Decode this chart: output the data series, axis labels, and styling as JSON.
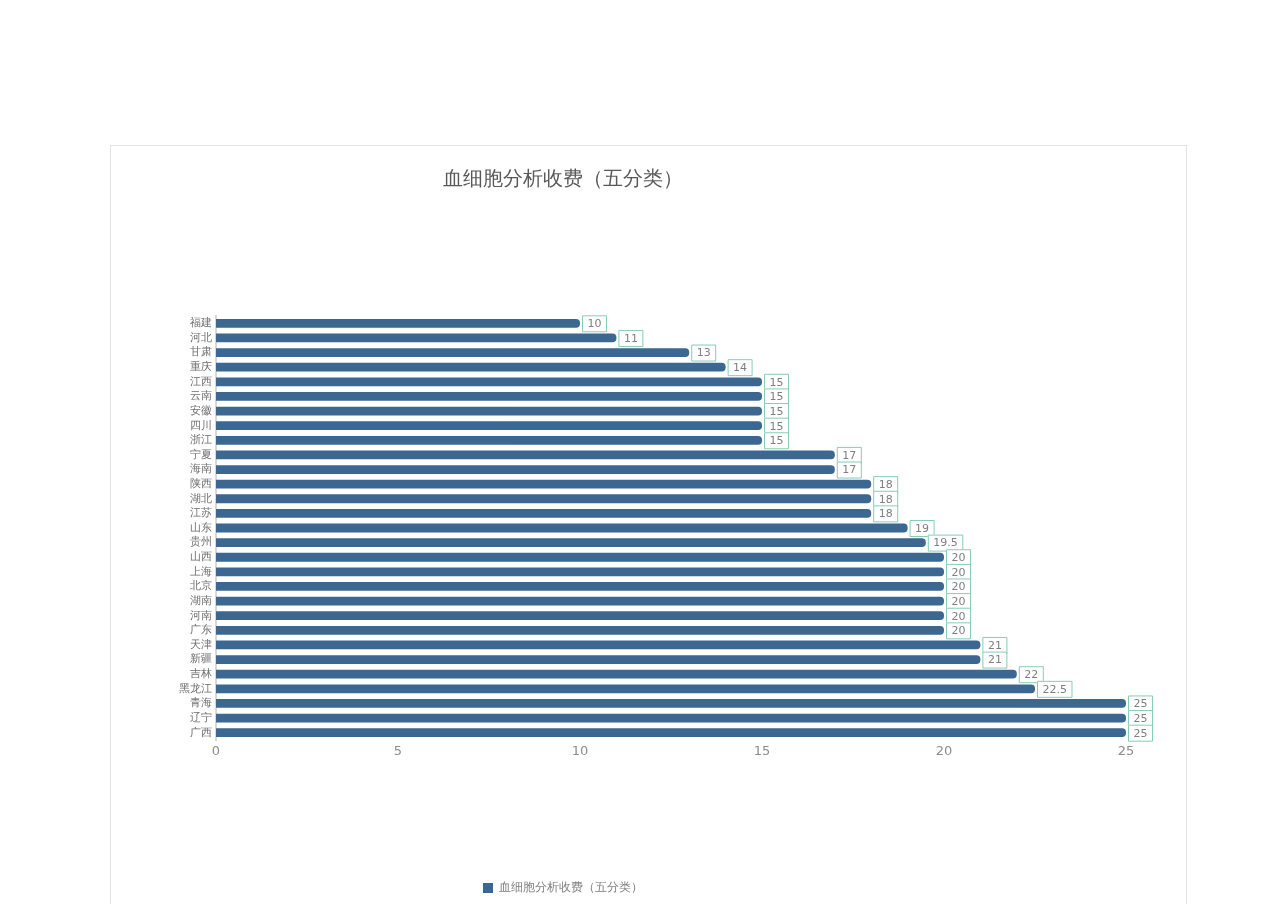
{
  "chart_data": {
    "type": "bar",
    "orientation": "horizontal",
    "title": "血细胞分析收费（五分类）",
    "categories": [
      "福建",
      "河北",
      "甘肃",
      "重庆",
      "江西",
      "云南",
      "安徽",
      "四川",
      "浙江",
      "宁夏",
      "海南",
      "陕西",
      "湖北",
      "江苏",
      "山东",
      "贵州",
      "山西",
      "上海",
      "北京",
      "湖南",
      "河南",
      "广东",
      "天津",
      "新疆",
      "吉林",
      "黑龙江",
      "青海",
      "辽宁",
      "广西"
    ],
    "series": [
      {
        "name": "血细胞分析收费（五分类）",
        "color": "#3b6790",
        "values": [
          10,
          11,
          13,
          14,
          15,
          15,
          15,
          15,
          15,
          17,
          17,
          18,
          18,
          18,
          19,
          19.5,
          20,
          20,
          20,
          20,
          20,
          20,
          21,
          21,
          22,
          22.5,
          25,
          25,
          25
        ]
      }
    ],
    "xlim": [
      0,
      25
    ],
    "xticks": [
      0,
      5,
      10,
      15,
      20,
      25
    ],
    "grid": false,
    "legend": "bottom",
    "data_labels": true
  }
}
